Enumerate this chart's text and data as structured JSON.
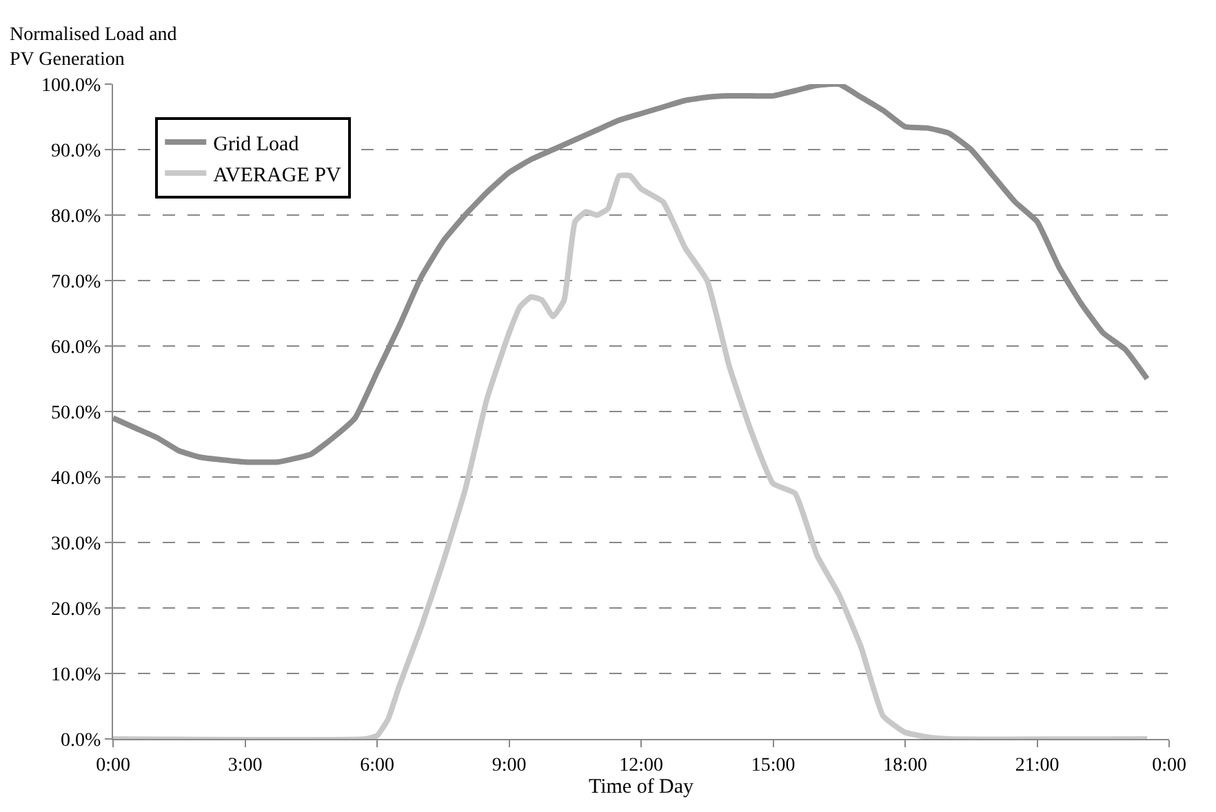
{
  "chart_data": {
    "type": "line",
    "ylabel": "Normalised Load and\nPV Generation",
    "xlabel": "Time of Day",
    "xlim": [
      0,
      24
    ],
    "xticks": [
      {
        "value": 0,
        "label": "0:00"
      },
      {
        "value": 3,
        "label": "3:00"
      },
      {
        "value": 6,
        "label": "6:00"
      },
      {
        "value": 9,
        "label": "9:00"
      },
      {
        "value": 12,
        "label": "12:00"
      },
      {
        "value": 15,
        "label": "15:00"
      },
      {
        "value": 18,
        "label": "18:00"
      },
      {
        "value": 21,
        "label": "21:00"
      },
      {
        "value": 24,
        "label": "0:00"
      }
    ],
    "ylim": [
      0,
      100
    ],
    "yticks": [
      {
        "value": 0,
        "label": "0.0%"
      },
      {
        "value": 10,
        "label": "10.0%"
      },
      {
        "value": 20,
        "label": "20.0%"
      },
      {
        "value": 30,
        "label": "30.0%"
      },
      {
        "value": 40,
        "label": "40.0%"
      },
      {
        "value": 50,
        "label": "50.0%"
      },
      {
        "value": 60,
        "label": "60.0%"
      },
      {
        "value": 70,
        "label": "70.0%"
      },
      {
        "value": 80,
        "label": "80.0%"
      },
      {
        "value": 90,
        "label": "90.0%"
      },
      {
        "value": 100,
        "label": "100.0%"
      }
    ],
    "grid": "y",
    "legend": "top left",
    "marker": "none",
    "line_style": "solid",
    "series": [
      {
        "name": "Grid Load",
        "color": "#8c8c8c",
        "x": [
          0,
          0.5,
          1,
          1.5,
          2,
          3,
          3.75,
          4.5,
          5,
          5.5,
          6,
          6.5,
          7,
          7.5,
          8,
          8.5,
          9,
          9.5,
          10,
          10.5,
          11,
          11.5,
          12,
          12.5,
          13,
          13.5,
          14,
          14.5,
          15,
          15.5,
          16,
          16.5,
          17,
          17.5,
          18,
          18.5,
          19,
          19.5,
          20,
          20.5,
          21,
          21.5,
          22,
          22.5,
          23,
          23.5
        ],
        "values": [
          49,
          47.5,
          46,
          44,
          43,
          42.3,
          42.3,
          43.5,
          46,
          49,
          56,
          63,
          70.5,
          76,
          80,
          83.5,
          86.5,
          88.5,
          90,
          91.5,
          93,
          94.5,
          95.5,
          96.5,
          97.5,
          98,
          98.2,
          98.2,
          98.2,
          99,
          99.8,
          100,
          98,
          96,
          93.5,
          93.3,
          92.5,
          90,
          86,
          82,
          79,
          72,
          66.5,
          62,
          59.5,
          55
        ]
      },
      {
        "name": "AVERAGE PV",
        "color": "#c8c8c8",
        "x": [
          0,
          5.75,
          6,
          6.25,
          6.5,
          7,
          7.5,
          8,
          8.5,
          9,
          9.25,
          9.5,
          9.75,
          10,
          10.25,
          10.5,
          10.75,
          11,
          11.25,
          11.5,
          11.75,
          12,
          12.5,
          13,
          13.5,
          14,
          14.5,
          15,
          15.5,
          16,
          16.5,
          17,
          17.5,
          18,
          18.5,
          19,
          23.5
        ],
        "values": [
          0,
          0,
          0.5,
          3,
          8,
          17,
          27,
          38,
          52,
          62,
          66,
          67.5,
          67,
          64.5,
          67,
          79,
          80.5,
          80,
          81,
          86,
          86,
          84,
          82,
          75,
          70,
          57,
          47,
          39,
          37.5,
          28,
          22,
          14,
          3.5,
          1,
          0.3,
          0,
          0
        ]
      }
    ]
  }
}
